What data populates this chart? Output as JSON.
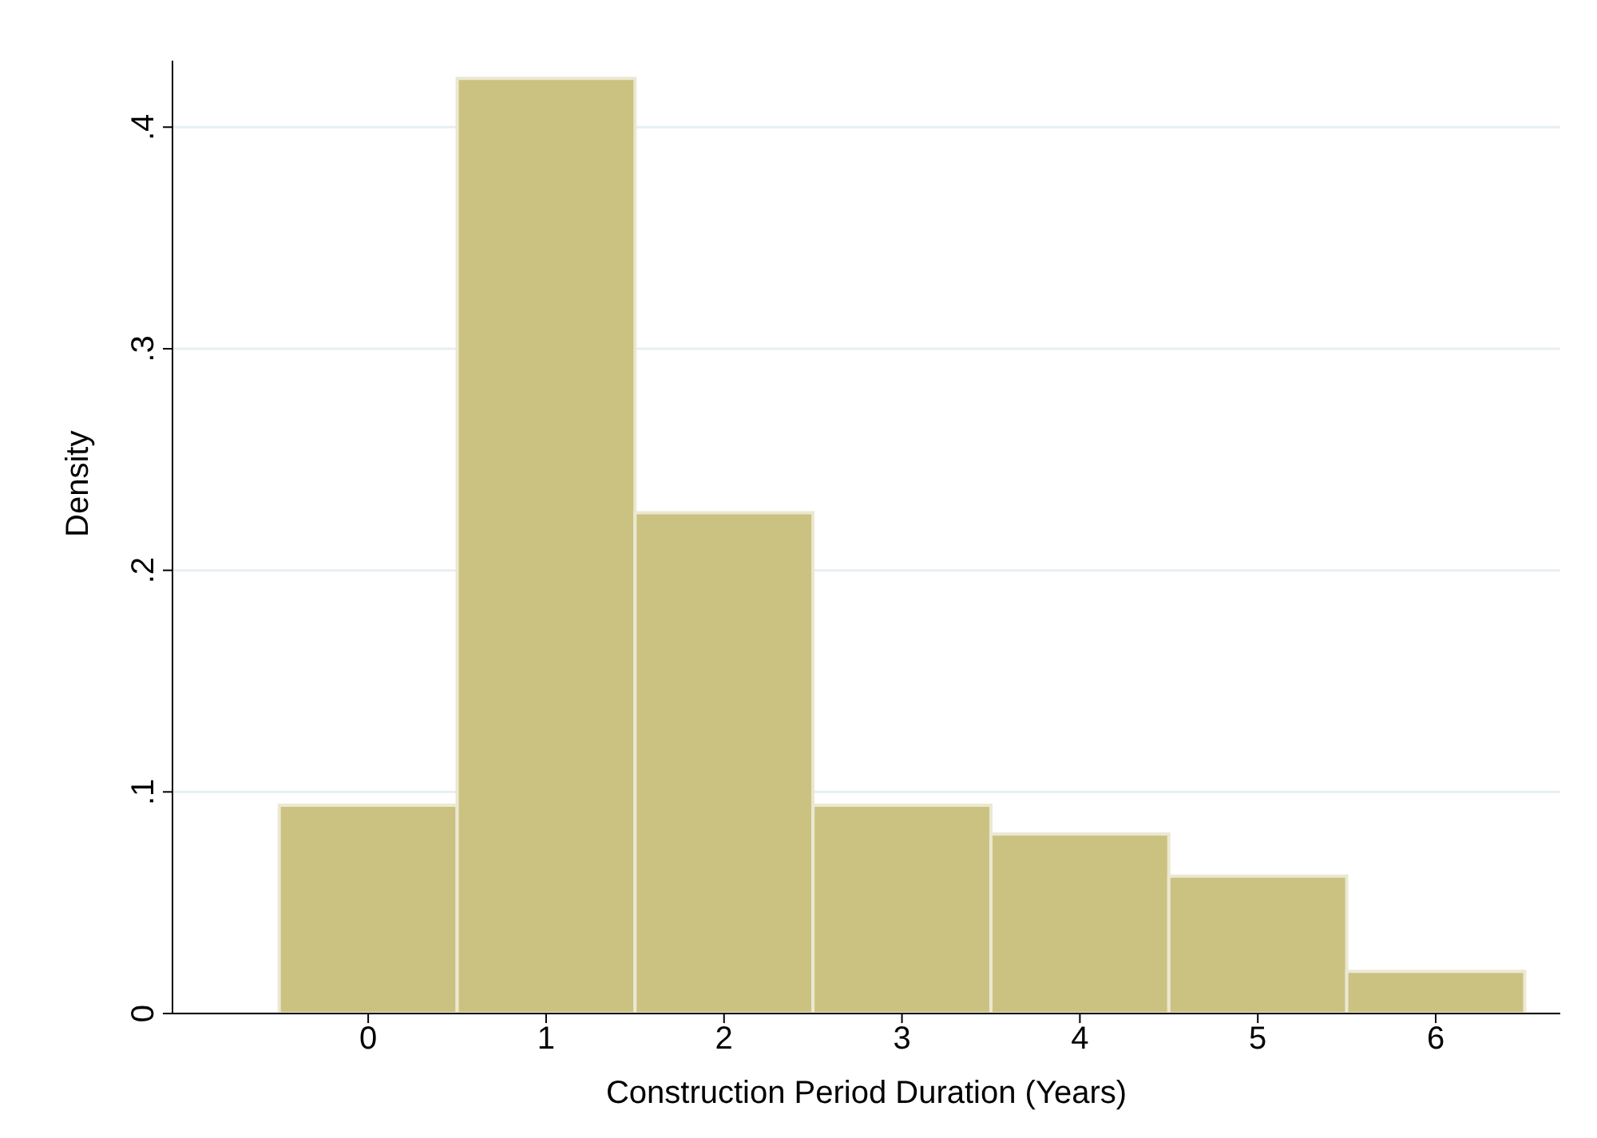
{
  "chart_data": {
    "type": "histogram",
    "xlabel": "Construction Period Duration (Years)",
    "ylabel": "Density",
    "bins": [
      -0.5,
      0.5,
      1.5,
      2.5,
      3.5,
      4.5,
      5.5,
      6.5
    ],
    "values": [
      0.094,
      0.422,
      0.226,
      0.094,
      0.081,
      0.062,
      0.019
    ],
    "color": "#cbc282",
    "xlim": [
      -1.1,
      6.7
    ],
    "xticks": [
      0,
      1,
      2,
      3,
      4,
      5,
      6
    ],
    "ylim": [
      0,
      0.43
    ],
    "yticks": [
      0,
      {
        "value": 0.1,
        "label": ".1"
      },
      {
        "value": 0.2,
        "label": ".2"
      },
      {
        "value": 0.3,
        "label": ".3"
      },
      {
        "value": 0.4,
        "label": ".4"
      }
    ],
    "grid": "y"
  }
}
